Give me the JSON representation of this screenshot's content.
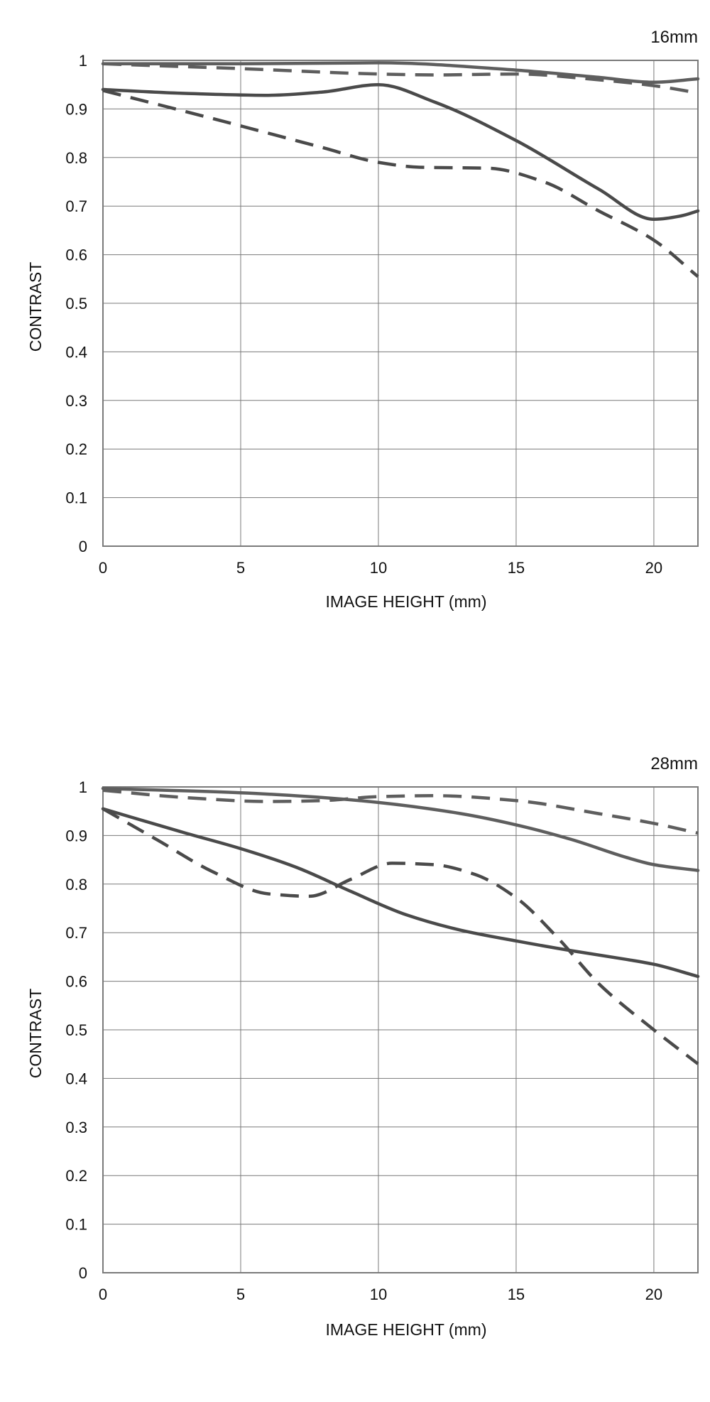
{
  "colors": {
    "line": "#4a4a4a",
    "line_light": "#5e5e5e",
    "grid": "#7a7a7a",
    "text": "#111111"
  },
  "chart_data": [
    {
      "type": "line",
      "focal_label": "16mm",
      "xlabel": "IMAGE HEIGHT (mm)",
      "ylabel": "CONTRAST",
      "xlim": [
        0,
        21.6
      ],
      "ylim": [
        0,
        1
      ],
      "xticks": [
        0,
        5,
        10,
        15,
        20
      ],
      "yticks": [
        0,
        0.1,
        0.2,
        0.3,
        0.4,
        0.5,
        0.6,
        0.7,
        0.8,
        0.9,
        1
      ],
      "ytick_labels": [
        "0",
        "0.1",
        "0.2",
        "0.3",
        "0.4",
        "0.5",
        "0.6",
        "0.7",
        "0.8",
        "0.9",
        "1"
      ],
      "xtick_labels": [
        "0",
        "5",
        "10",
        "15",
        "20"
      ],
      "grid": true,
      "series": [
        {
          "style": "solid",
          "color": "#5e5e5e",
          "x": [
            0,
            5,
            10,
            15,
            18,
            20,
            21.6
          ],
          "y": [
            0.993,
            0.993,
            0.995,
            0.98,
            0.965,
            0.955,
            0.962
          ]
        },
        {
          "style": "dashed",
          "color": "#5e5e5e",
          "x": [
            0,
            5,
            10,
            12,
            15,
            18,
            20,
            21.6
          ],
          "y": [
            0.993,
            0.983,
            0.972,
            0.97,
            0.972,
            0.96,
            0.948,
            0.933
          ]
        },
        {
          "style": "solid",
          "color": "#4a4a4a",
          "x": [
            0,
            3,
            6,
            8,
            10,
            12,
            15,
            18,
            20,
            21,
            21.6
          ],
          "y": [
            0.94,
            0.932,
            0.928,
            0.935,
            0.95,
            0.915,
            0.835,
            0.735,
            0.673,
            0.68,
            0.69
          ]
        },
        {
          "style": "dashed",
          "color": "#4a4a4a",
          "x": [
            0,
            4,
            8,
            10,
            11.5,
            14,
            16,
            18,
            20,
            21.6
          ],
          "y": [
            0.938,
            0.88,
            0.82,
            0.79,
            0.78,
            0.778,
            0.75,
            0.69,
            0.63,
            0.555
          ]
        }
      ]
    },
    {
      "type": "line",
      "focal_label": "28mm",
      "xlabel": "IMAGE HEIGHT (mm)",
      "ylabel": "CONTRAST",
      "xlim": [
        0,
        21.6
      ],
      "ylim": [
        0,
        1
      ],
      "xticks": [
        0,
        5,
        10,
        15,
        20
      ],
      "yticks": [
        0,
        0.1,
        0.2,
        0.3,
        0.4,
        0.5,
        0.6,
        0.7,
        0.8,
        0.9,
        1
      ],
      "ytick_labels": [
        "0",
        "0.1",
        "0.2",
        "0.3",
        "0.4",
        "0.5",
        "0.6",
        "0.7",
        "0.8",
        "0.9",
        "1"
      ],
      "xtick_labels": [
        "0",
        "5",
        "10",
        "15",
        "20"
      ],
      "grid": true,
      "series": [
        {
          "style": "solid",
          "color": "#5e5e5e",
          "x": [
            0,
            5,
            8,
            10,
            13,
            15,
            17,
            19,
            20,
            21.6
          ],
          "y": [
            0.997,
            0.988,
            0.978,
            0.968,
            0.945,
            0.922,
            0.892,
            0.855,
            0.84,
            0.828
          ]
        },
        {
          "style": "dashed",
          "color": "#5e5e5e",
          "x": [
            0,
            3,
            6,
            8,
            10,
            12,
            15,
            18,
            20,
            21.6
          ],
          "y": [
            0.993,
            0.978,
            0.97,
            0.972,
            0.98,
            0.982,
            0.972,
            0.945,
            0.925,
            0.905
          ]
        },
        {
          "style": "solid",
          "color": "#4a4a4a",
          "x": [
            0,
            3,
            5,
            7,
            9,
            11,
            13,
            15,
            17,
            19,
            20,
            21.6
          ],
          "y": [
            0.955,
            0.905,
            0.873,
            0.835,
            0.785,
            0.737,
            0.705,
            0.683,
            0.663,
            0.645,
            0.635,
            0.61
          ]
        },
        {
          "style": "dashed",
          "color": "#4a4a4a",
          "x": [
            0,
            2,
            4,
            6,
            7.5,
            9,
            10.5,
            12,
            13.5,
            15,
            16.5,
            18,
            20,
            21.6
          ],
          "y": [
            0.955,
            0.89,
            0.825,
            0.78,
            0.775,
            0.81,
            0.843,
            0.84,
            0.82,
            0.772,
            0.69,
            0.595,
            0.5,
            0.43
          ]
        }
      ]
    }
  ]
}
